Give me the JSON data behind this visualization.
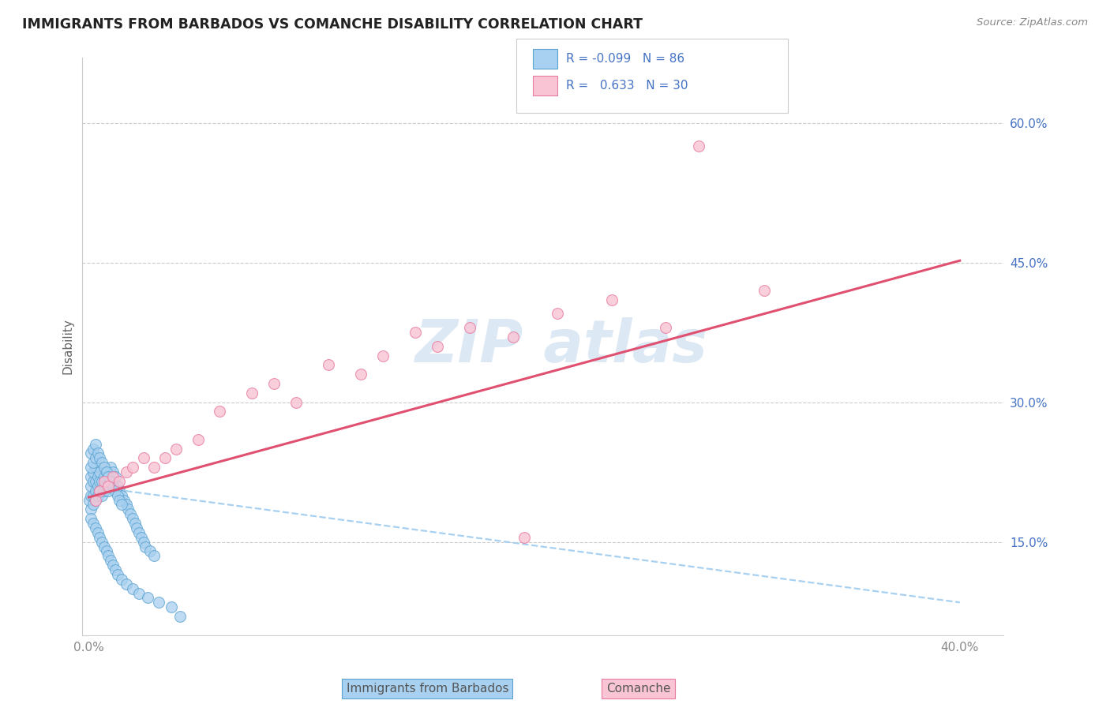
{
  "title": "IMMIGRANTS FROM BARBADOS VS COMANCHE DISABILITY CORRELATION CHART",
  "source": "Source: ZipAtlas.com",
  "ylabel": "Disability",
  "xlim": [
    -0.003,
    0.42
  ],
  "ylim": [
    0.05,
    0.67
  ],
  "x_tick_positions": [
    0.0,
    0.4
  ],
  "x_tick_labels": [
    "0.0%",
    "40.0%"
  ],
  "y_tick_positions": [
    0.15,
    0.3,
    0.45,
    0.6
  ],
  "y_tick_labels": [
    "15.0%",
    "30.0%",
    "45.0%",
    "60.0%"
  ],
  "blue_face": "#a8d0f0",
  "blue_edge": "#5ba3d0",
  "pink_face": "#f9c4d4",
  "pink_edge": "#e87ca0",
  "trend_blue": "#a8d0f0",
  "trend_pink": "#e05070",
  "grid_color": "#cccccc",
  "spine_color": "#cccccc",
  "tick_color": "#888888",
  "right_tick_color": "#4472c4",
  "ylabel_color": "#666666",
  "title_color": "#222222",
  "source_color": "#888888",
  "watermark_color": "#dde8f5",
  "legend_edge": "#cccccc",
  "legend_text_color": "#4472c4",
  "blue_scatter_x": [
    0.0,
    0.001,
    0.001,
    0.001,
    0.001,
    0.002,
    0.002,
    0.002,
    0.002,
    0.003,
    0.003,
    0.003,
    0.003,
    0.004,
    0.004,
    0.004,
    0.005,
    0.005,
    0.005,
    0.006,
    0.006,
    0.007,
    0.007,
    0.008,
    0.008,
    0.009,
    0.009,
    0.01,
    0.01,
    0.011,
    0.011,
    0.012,
    0.013,
    0.014,
    0.015,
    0.016,
    0.017,
    0.018,
    0.019,
    0.02,
    0.021,
    0.022,
    0.023,
    0.024,
    0.025,
    0.026,
    0.028,
    0.03,
    0.001,
    0.001,
    0.002,
    0.002,
    0.003,
    0.003,
    0.004,
    0.005,
    0.006,
    0.007,
    0.008,
    0.009,
    0.01,
    0.011,
    0.012,
    0.013,
    0.014,
    0.015,
    0.001,
    0.002,
    0.003,
    0.004,
    0.005,
    0.006,
    0.007,
    0.008,
    0.009,
    0.01,
    0.011,
    0.012,
    0.013,
    0.015,
    0.017,
    0.02,
    0.023,
    0.027,
    0.032,
    0.038,
    0.042
  ],
  "blue_scatter_y": [
    0.195,
    0.185,
    0.2,
    0.21,
    0.22,
    0.19,
    0.2,
    0.215,
    0.225,
    0.195,
    0.205,
    0.215,
    0.23,
    0.2,
    0.21,
    0.22,
    0.205,
    0.215,
    0.225,
    0.2,
    0.215,
    0.205,
    0.22,
    0.21,
    0.225,
    0.205,
    0.22,
    0.215,
    0.23,
    0.215,
    0.225,
    0.22,
    0.21,
    0.205,
    0.2,
    0.195,
    0.19,
    0.185,
    0.18,
    0.175,
    0.17,
    0.165,
    0.16,
    0.155,
    0.15,
    0.145,
    0.14,
    0.135,
    0.23,
    0.245,
    0.235,
    0.25,
    0.24,
    0.255,
    0.245,
    0.24,
    0.235,
    0.23,
    0.225,
    0.22,
    0.215,
    0.21,
    0.205,
    0.2,
    0.195,
    0.19,
    0.175,
    0.17,
    0.165,
    0.16,
    0.155,
    0.15,
    0.145,
    0.14,
    0.135,
    0.13,
    0.125,
    0.12,
    0.115,
    0.11,
    0.105,
    0.1,
    0.095,
    0.09,
    0.085,
    0.08,
    0.07
  ],
  "pink_scatter_x": [
    0.003,
    0.005,
    0.007,
    0.009,
    0.011,
    0.014,
    0.017,
    0.02,
    0.025,
    0.03,
    0.035,
    0.04,
    0.05,
    0.06,
    0.075,
    0.085,
    0.095,
    0.11,
    0.125,
    0.135,
    0.15,
    0.16,
    0.175,
    0.195,
    0.215,
    0.24,
    0.265,
    0.28,
    0.31,
    0.2
  ],
  "pink_scatter_y": [
    0.195,
    0.205,
    0.215,
    0.21,
    0.22,
    0.215,
    0.225,
    0.23,
    0.24,
    0.23,
    0.24,
    0.25,
    0.26,
    0.29,
    0.31,
    0.32,
    0.3,
    0.34,
    0.33,
    0.35,
    0.375,
    0.36,
    0.38,
    0.37,
    0.395,
    0.41,
    0.38,
    0.575,
    0.42,
    0.155
  ],
  "pink_trend_x0": 0.0,
  "pink_trend_y0": 0.198,
  "pink_trend_x1": 0.4,
  "pink_trend_y1": 0.452,
  "blue_trend_x0": 0.0,
  "blue_trend_y0": 0.21,
  "blue_trend_x1": 0.4,
  "blue_trend_y1": 0.085
}
